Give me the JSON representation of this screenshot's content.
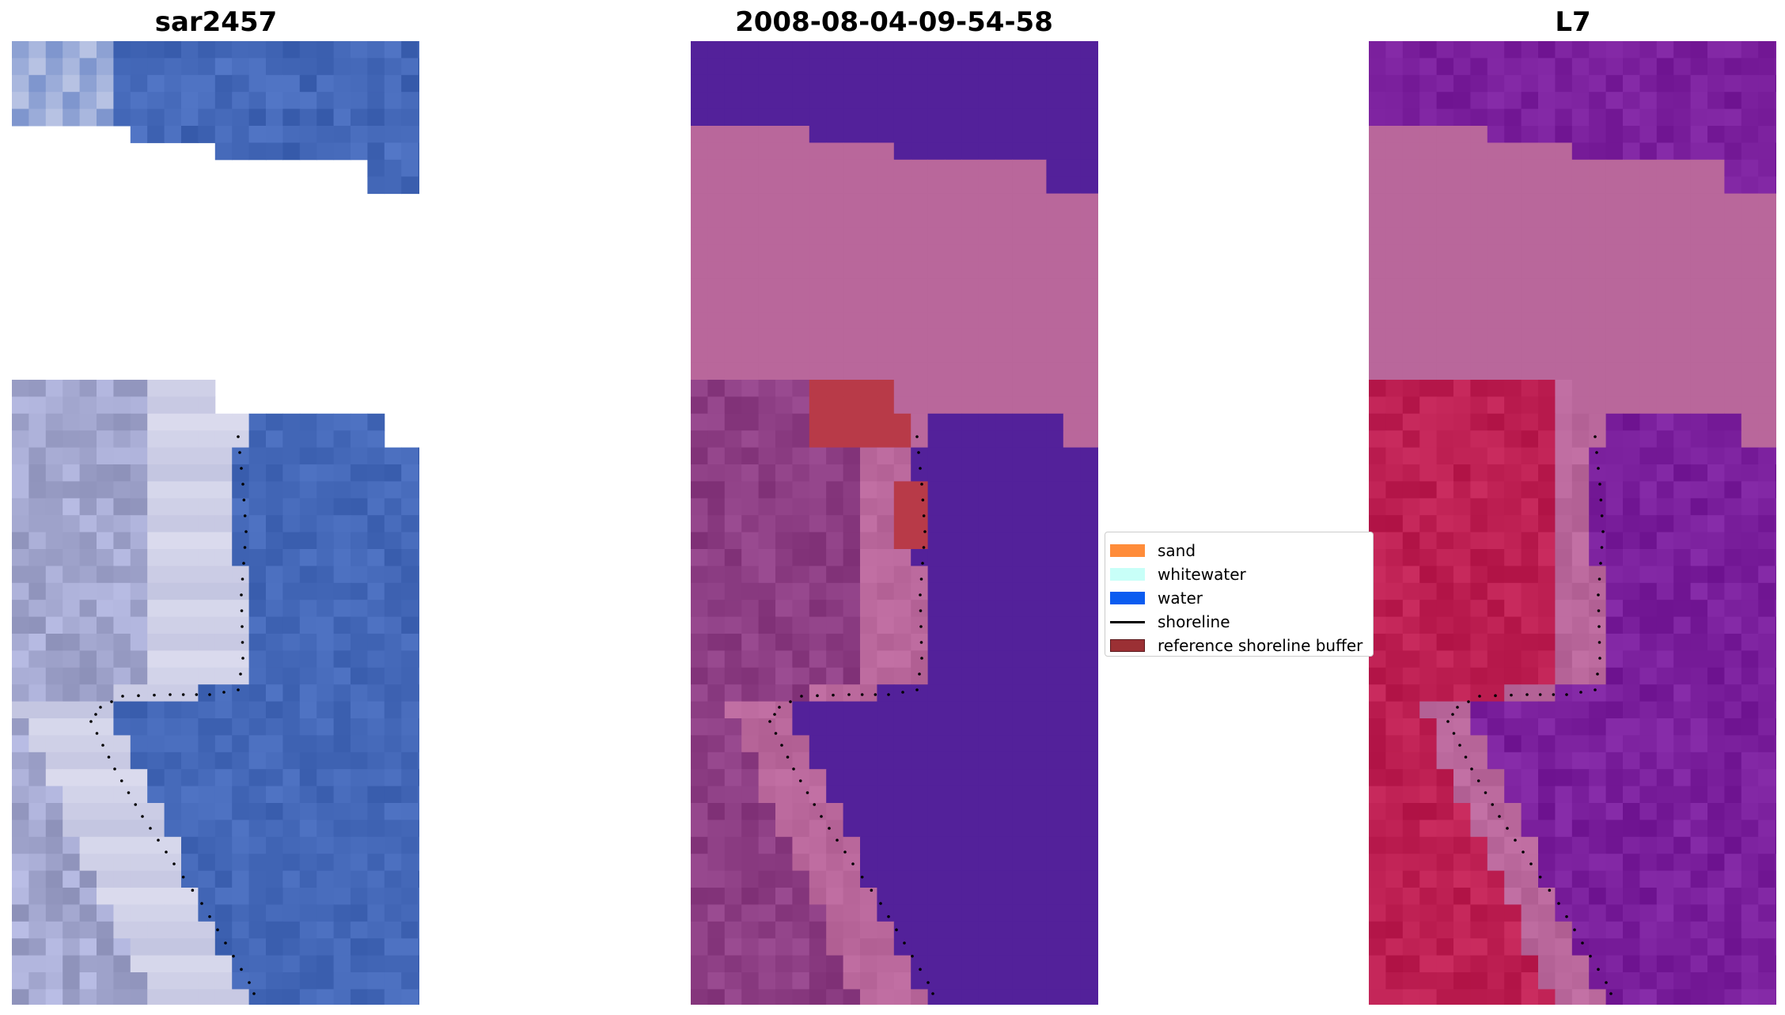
{
  "panels": [
    {
      "title": "sar2457"
    },
    {
      "title": "2008-08-04-09-54-58"
    },
    {
      "title": "L7"
    }
  ],
  "legend": {
    "items": [
      {
        "label": "sand",
        "color": "#ff8c3a",
        "kind": "patch"
      },
      {
        "label": "whitewater",
        "color": "#c8fff8",
        "kind": "patch"
      },
      {
        "label": "water",
        "color": "#0b5cf0",
        "kind": "patch"
      },
      {
        "label": "shoreline",
        "color": "#000000",
        "kind": "line"
      },
      {
        "label": "reference shoreline buffer",
        "color": "#9b3034",
        "kind": "patch"
      }
    ]
  },
  "colors": {
    "rgb_water": "#4468b8",
    "rgb_land": "#a3a7cf",
    "rgb_white": "#ecebf7",
    "class_water": "#53219a",
    "class_land": "#8d3e84",
    "class_buffer": "#b9679b",
    "class_whitewater": "#b83a48",
    "ndwi_water": "#7a1f9c",
    "ndwi_land": "#bd1f52",
    "ndwi_buffer": "#b9679b"
  }
}
